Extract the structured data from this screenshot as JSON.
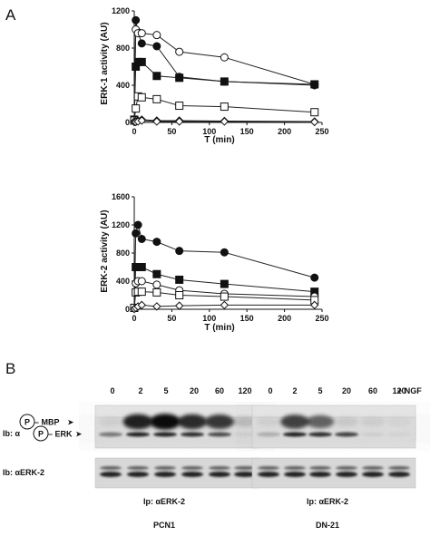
{
  "panel_a_label": "A",
  "panel_b_label": "B",
  "chart_data": [
    {
      "type": "line",
      "title": "",
      "xlabel": "T (min)",
      "ylabel": "ERK-1 activity (AU)",
      "xlim": [
        0,
        250
      ],
      "ylim": [
        0,
        1200
      ],
      "xticks": [
        "0",
        "50",
        "100",
        "150",
        "200",
        "250"
      ],
      "yticks": [
        "0",
        "400",
        "800",
        "1200"
      ],
      "x": [
        0,
        2,
        5,
        10,
        30,
        60,
        120,
        240
      ],
      "series": [
        {
          "marker": "filled-circle",
          "values": [
            30,
            1100,
            970,
            850,
            820,
            490,
            440,
            400
          ]
        },
        {
          "marker": "open-circle",
          "values": [
            30,
            1000,
            960,
            960,
            940,
            760,
            700,
            410
          ]
        },
        {
          "marker": "filled-square",
          "values": [
            30,
            600,
            650,
            650,
            500,
            480,
            440,
            410
          ]
        },
        {
          "marker": "open-square",
          "values": [
            20,
            150,
            280,
            270,
            250,
            180,
            170,
            110
          ]
        },
        {
          "marker": "filled-diamond",
          "values": [
            10,
            10,
            20,
            30,
            20,
            20,
            15,
            10
          ]
        },
        {
          "marker": "open-diamond",
          "values": [
            5,
            5,
            10,
            20,
            10,
            10,
            10,
            5
          ]
        }
      ]
    },
    {
      "type": "line",
      "title": "",
      "xlabel": "T (min)",
      "ylabel": "ERK-2 activity (AU)",
      "xlim": [
        0,
        250
      ],
      "ylim": [
        0,
        1600
      ],
      "xticks": [
        "0",
        "50",
        "100",
        "150",
        "200",
        "250"
      ],
      "yticks": [
        "0",
        "400",
        "800",
        "1200",
        "1600"
      ],
      "x": [
        0,
        2,
        5,
        10,
        30,
        60,
        120,
        240
      ],
      "series": [
        {
          "marker": "filled-circle",
          "values": [
            20,
            1080,
            1200,
            1000,
            960,
            830,
            810,
            450
          ]
        },
        {
          "marker": "filled-square",
          "values": [
            20,
            600,
            600,
            600,
            500,
            420,
            360,
            250
          ]
        },
        {
          "marker": "open-circle",
          "values": [
            20,
            370,
            400,
            400,
            350,
            270,
            220,
            180
          ]
        },
        {
          "marker": "open-square",
          "values": [
            20,
            240,
            250,
            250,
            240,
            200,
            180,
            130
          ]
        },
        {
          "marker": "open-diamond",
          "values": [
            5,
            20,
            40,
            60,
            40,
            50,
            60,
            60
          ]
        }
      ]
    }
  ],
  "blot": {
    "time_labels": [
      "0",
      "2",
      "5",
      "20",
      "60",
      "120"
    ],
    "ngf_label": "+ NGF",
    "row_labels": {
      "mbp_phospho": "P",
      "mbp": " – MBP",
      "erk_prefix": "Ib: α",
      "erk_phospho": "P",
      "erk": " – ERK",
      "erk2": "Ib: αERK-2"
    },
    "ip_label": "Ip: αERK-2",
    "cell_lines": [
      "PCN1",
      "DN-21"
    ]
  }
}
